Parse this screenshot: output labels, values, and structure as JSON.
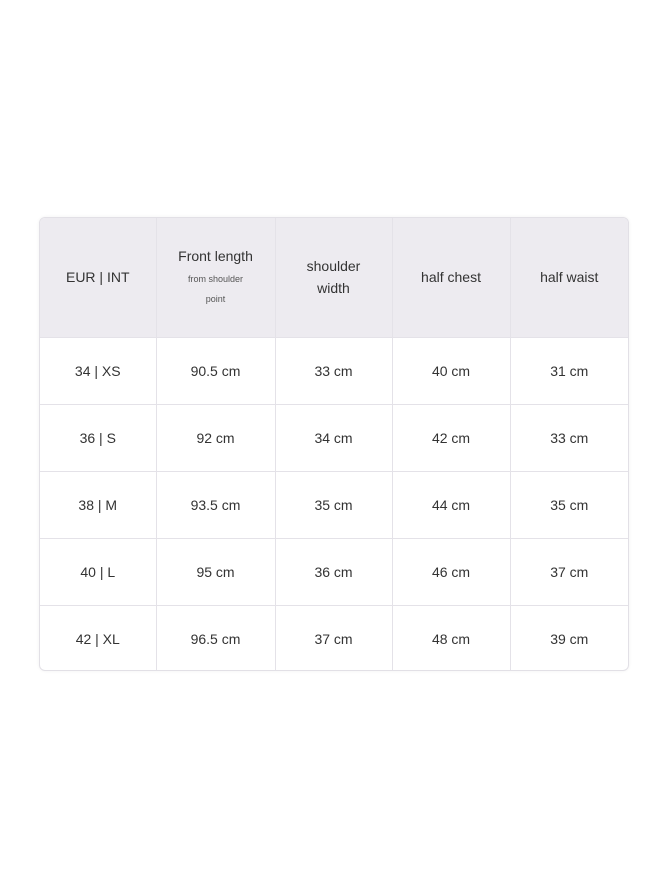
{
  "table": {
    "headers": [
      {
        "label": "EUR | INT",
        "sub": ""
      },
      {
        "label": "Front length",
        "sub": "from shoulder point"
      },
      {
        "label": "shoulder width",
        "sub": ""
      },
      {
        "label": "half chest",
        "sub": ""
      },
      {
        "label": "half waist",
        "sub": ""
      }
    ],
    "rows": [
      [
        "34 | XS",
        "90.5 cm",
        "33 cm",
        "40 cm",
        "31 cm"
      ],
      [
        "36 | S",
        "92 cm",
        "34 cm",
        "42 cm",
        "33 cm"
      ],
      [
        "38 | M",
        "93.5 cm",
        "35 cm",
        "44 cm",
        "35 cm"
      ],
      [
        "40 | L",
        "95 cm",
        "36 cm",
        "46 cm",
        "37 cm"
      ],
      [
        "42 | XL",
        "96.5 cm",
        "37 cm",
        "48 cm",
        "39 cm"
      ]
    ],
    "header_bg": "#edebf0"
  }
}
